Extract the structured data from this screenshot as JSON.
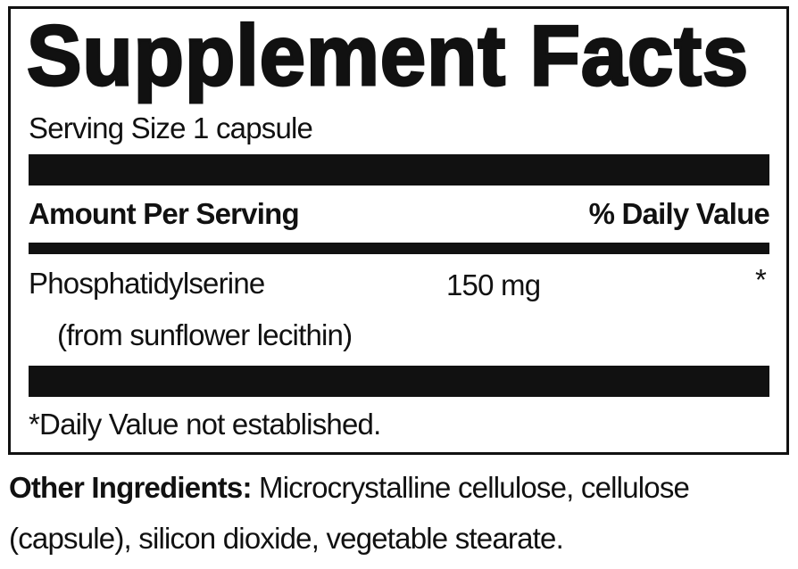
{
  "title": "Supplement Facts",
  "serving_size": "Serving Size 1 capsule",
  "header": {
    "amount_label": "Amount Per Serving",
    "dv_label": "% Daily Value"
  },
  "rows": [
    {
      "name": "Phosphatidylserine",
      "sub": "(from sunflower lecithin)",
      "amount": "150 mg",
      "dv": "*"
    }
  ],
  "footnote": "*Daily Value not established.",
  "other_ingredients": {
    "label": "Other Ingredients:",
    "line1": "Microcrystalline cellulose, cellulose",
    "line2": "(capsule), silicon dioxide, vegetable stearate."
  }
}
